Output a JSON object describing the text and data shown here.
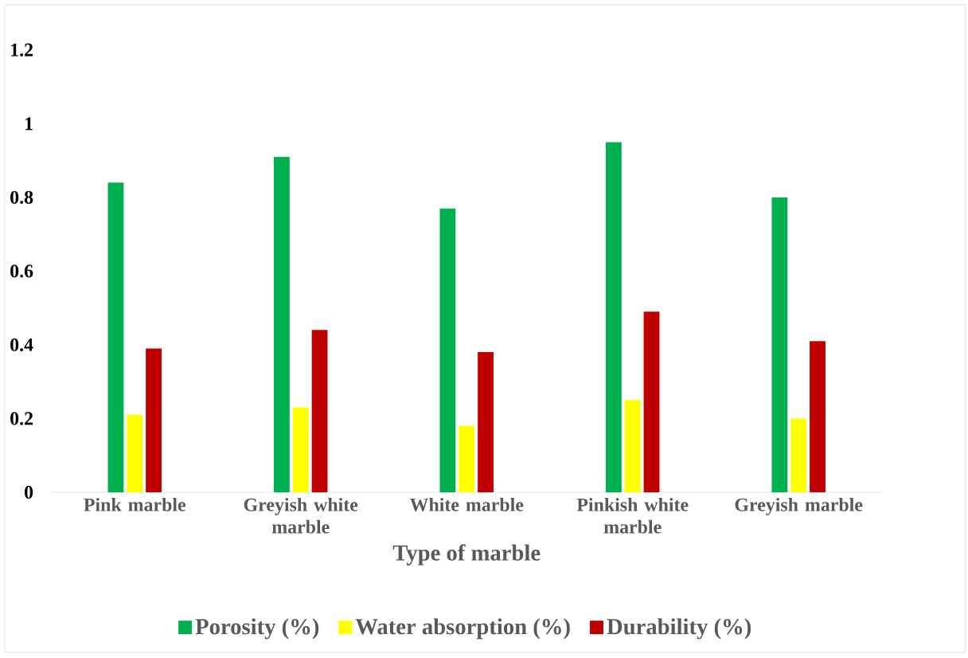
{
  "chart_data": {
    "type": "bar",
    "xlabel": "Type of marble",
    "categories": [
      "Pink marble",
      "Greyish white marble",
      "White marble",
      "Pinkish white marble",
      "Greyish marble"
    ],
    "series": [
      {
        "name": "Porosity (%)",
        "color": "#00b050",
        "values": [
          0.84,
          0.91,
          0.77,
          0.95,
          0.8
        ]
      },
      {
        "name": "Water absorption (%)",
        "color": "#ffff00",
        "values": [
          0.21,
          0.23,
          0.18,
          0.25,
          0.2
        ]
      },
      {
        "name": "Durability (%)",
        "color": "#c00000",
        "values": [
          0.39,
          0.44,
          0.38,
          0.49,
          0.41
        ]
      }
    ],
    "ylim": [
      0,
      1.2
    ],
    "yticks": [
      0,
      0.2,
      0.4,
      0.6,
      0.8,
      1,
      1.2
    ],
    "legend": "bottom"
  }
}
